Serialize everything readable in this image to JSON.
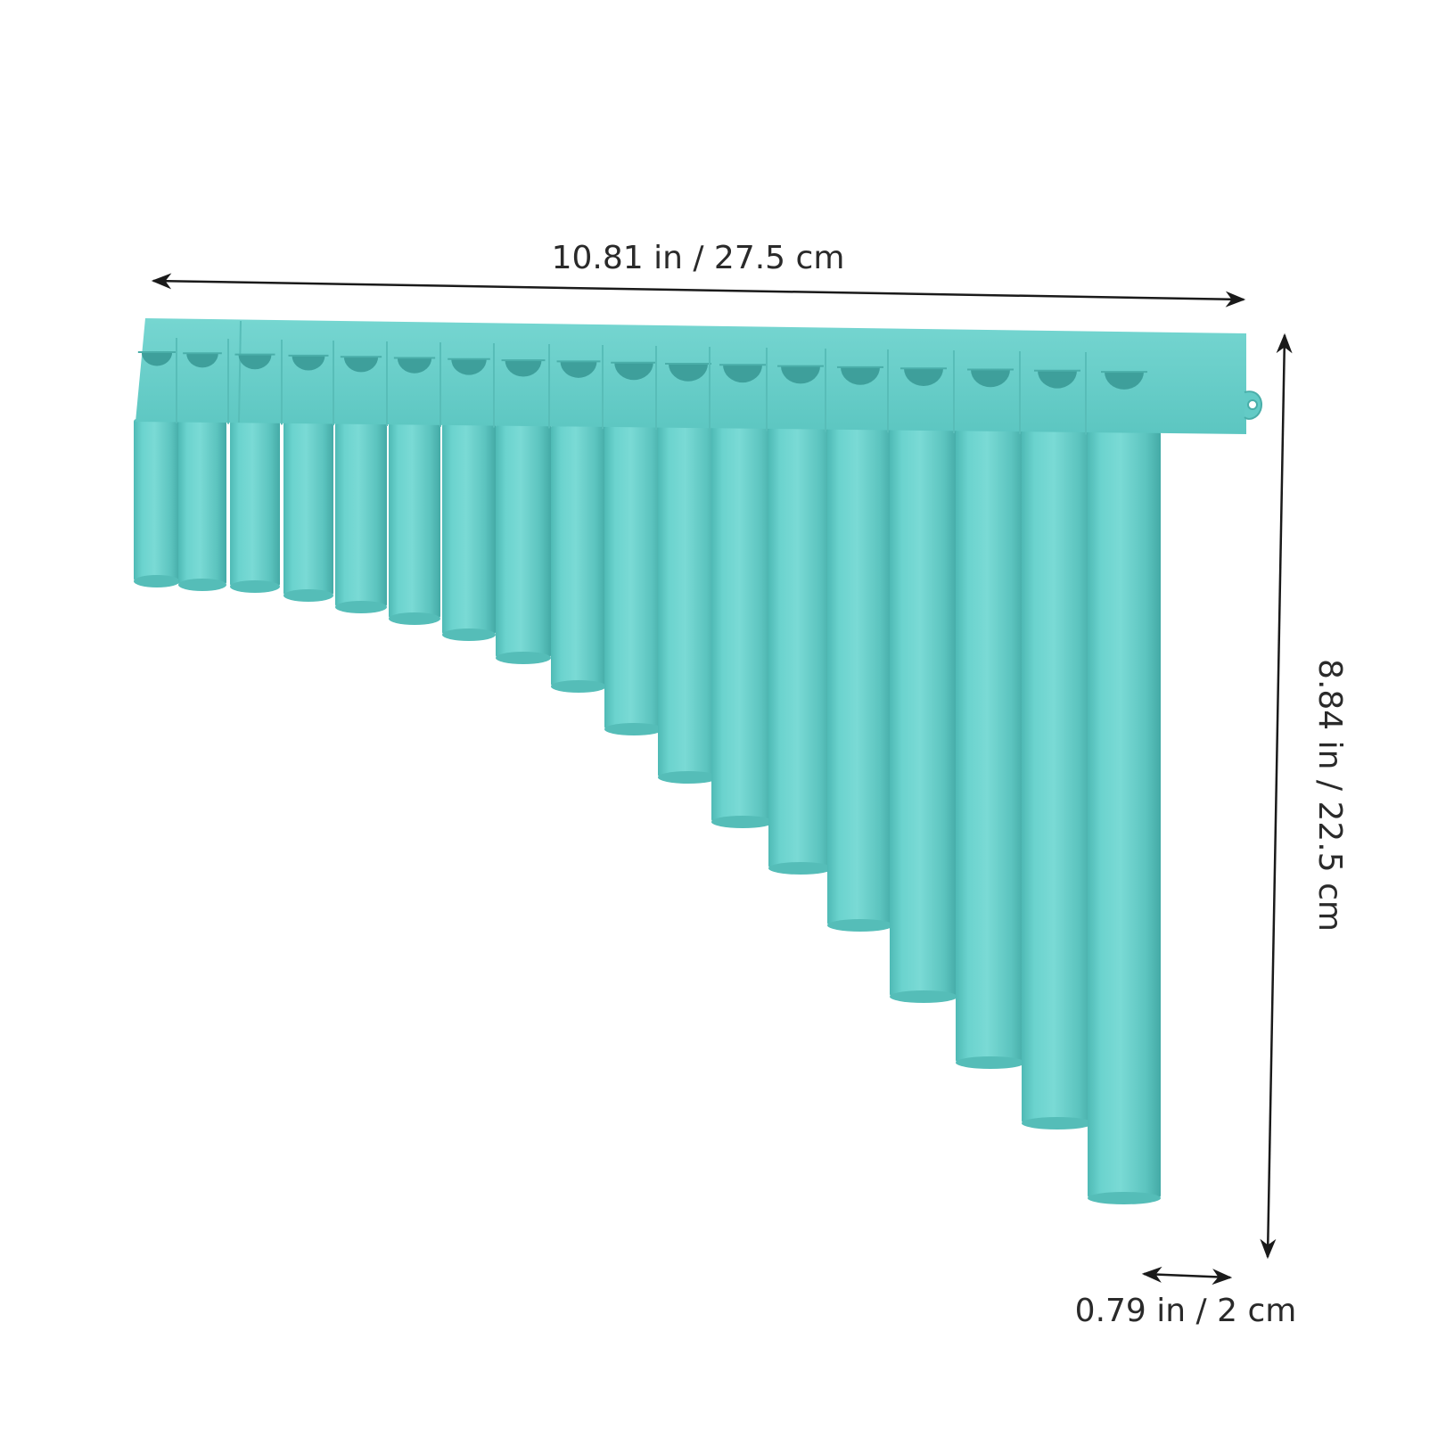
{
  "product": {
    "name": "pan flute",
    "pipe_count": 18,
    "colors": {
      "body": "#63cbc6",
      "body_dark": "#45aeaa",
      "body_light": "#86dcd7",
      "hole": "#2f8f8b"
    }
  },
  "dimensions": {
    "width_label": "10.81 in / 27.5 cm",
    "height_label": "8.84 in / 22.5 cm",
    "pipe_diameter_label": "0.79 in / 2 cm",
    "arrow_color": "#1a1a1a"
  }
}
